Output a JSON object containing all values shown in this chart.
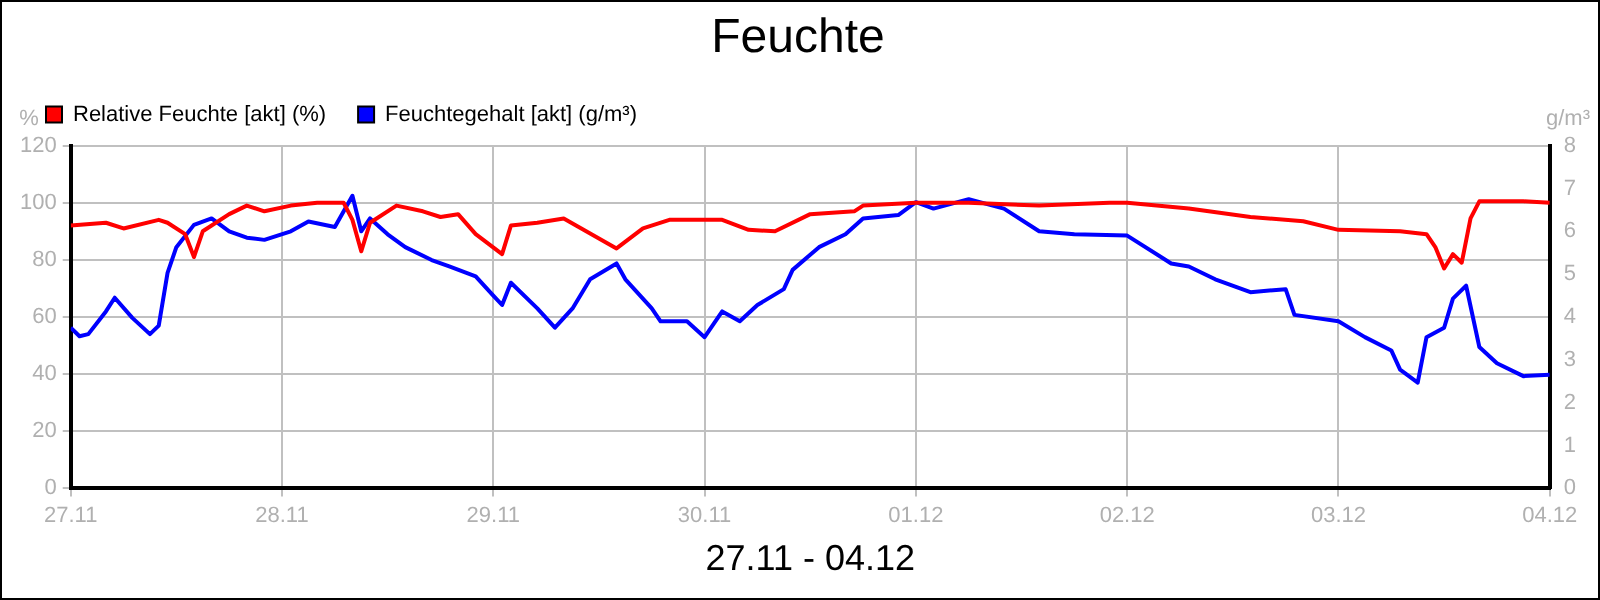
{
  "chart_data": {
    "type": "line",
    "title": "Feuchte",
    "xlabel": "27.11 - 04.12",
    "ylabel": "%",
    "y2label": "g/m³",
    "xlim": [
      "--11-27",
      "--12-04"
    ],
    "xticks": [
      {
        "value": "--11-27",
        "label": "27.11"
      },
      {
        "value": "--11-28",
        "label": "28.11"
      },
      {
        "value": "--11-29",
        "label": "29.11"
      },
      {
        "value": "--11-30",
        "label": "30.11"
      },
      {
        "value": "--12-01",
        "label": "01.12"
      },
      {
        "value": "--12-02",
        "label": "02.12"
      },
      {
        "value": "--12-03",
        "label": "03.12"
      },
      {
        "value": "--12-04",
        "label": "04.12"
      }
    ],
    "ylim": [
      0,
      120
    ],
    "yticks": [
      0,
      20,
      40,
      60,
      80,
      100,
      120
    ],
    "y2lim": [
      0,
      8
    ],
    "y2ticks": [
      0,
      1,
      2,
      3,
      4,
      5,
      6,
      7,
      8
    ],
    "grid": true,
    "legend": "top left",
    "marker": "none",
    "line_style": "solid",
    "series": [
      {
        "name": "Relative Feuchte [akt] (%)",
        "color": "#ff0000",
        "x": [
          "--11-27T00:00",
          "--11-27T04:00",
          "--11-27T06:00",
          "--11-27T10:00",
          "--11-27T11:00",
          "--11-27T13:00",
          "--11-27T14:00",
          "--11-27T15:00",
          "--11-27T18:00",
          "--11-27T20:00",
          "--11-27T22:00",
          "--11-28T01:00",
          "--11-28T04:00",
          "--11-28T07:00",
          "--11-28T08:00",
          "--11-28T09:00",
          "--11-28T10:00",
          "--11-28T13:00",
          "--11-28T16:00",
          "--11-28T18:00",
          "--11-28T20:00",
          "--11-28T22:00",
          "--11-29T01:00",
          "--11-29T02:00",
          "--11-29T05:00",
          "--11-29T08:00",
          "--11-29T10:00",
          "--11-29T14:00",
          "--11-29T17:00",
          "--11-29T20:00",
          "--11-30T02:00",
          "--11-30T05:00",
          "--11-30T08:00",
          "--11-30T12:00",
          "--11-30T17:00",
          "--11-30T18:00",
          "--12-01T00:00",
          "--12-01T06:00",
          "--12-01T14:00",
          "--12-01T22:00",
          "--12-02T00:00",
          "--12-02T07:00",
          "--12-02T14:00",
          "--12-02T20:00",
          "--12-03T00:00",
          "--12-03T07:00",
          "--12-03T10:00",
          "--12-03T11:00",
          "--12-03T12:00",
          "--12-03T13:00",
          "--12-03T14:00",
          "--12-03T15:00",
          "--12-03T16:00",
          "--12-03T21:00",
          "--12-04T00:00"
        ],
        "values": [
          92,
          93,
          91,
          94,
          93,
          89,
          81,
          90,
          96,
          99,
          97,
          99,
          100,
          100,
          94,
          83,
          93,
          99,
          97,
          95,
          96,
          89,
          82,
          92,
          93,
          94.5,
          91,
          84,
          91,
          94,
          94,
          90.5,
          90,
          96,
          97,
          99,
          100,
          100,
          99,
          100,
          100,
          98,
          95,
          93.5,
          90.5,
          90,
          89,
          84.5,
          77,
          82,
          79,
          94.5,
          100.5,
          100.5,
          100
        ]
      },
      {
        "name": "Feuchtegehalt [akt] (g/m³)",
        "color": "#0000ff",
        "axis": "y2",
        "x": [
          "--11-27T00:00",
          "--11-27T01:00",
          "--11-27T02:00",
          "--11-27T04:00",
          "--11-27T05:00",
          "--11-27T07:00",
          "--11-27T09:00",
          "--11-27T10:00",
          "--11-27T11:00",
          "--11-27T12:00",
          "--11-27T14:00",
          "--11-27T16:00",
          "--11-27T18:00",
          "--11-27T20:00",
          "--11-27T22:00",
          "--11-28T01:00",
          "--11-28T03:00",
          "--11-28T06:00",
          "--11-28T08:00",
          "--11-28T09:00",
          "--11-28T10:00",
          "--11-28T12:00",
          "--11-28T14:00",
          "--11-28T17:00",
          "--11-28T19:00",
          "--11-28T22:00",
          "--11-29T00:00",
          "--11-29T01:00",
          "--11-29T02:00",
          "--11-29T05:00",
          "--11-29T07:00",
          "--11-29T09:00",
          "--11-29T11:00",
          "--11-29T14:00",
          "--11-29T15:00",
          "--11-29T18:00",
          "--11-29T19:00",
          "--11-29T22:00",
          "--11-30T00:00",
          "--11-30T02:00",
          "--11-30T04:00",
          "--11-30T06:00",
          "--11-30T09:00",
          "--11-30T10:00",
          "--11-30T13:00",
          "--11-30T16:00",
          "--11-30T18:00",
          "--11-30T22:00",
          "--12-01T00:00",
          "--12-01T02:00",
          "--12-01T06:00",
          "--12-01T10:00",
          "--12-01T14:00",
          "--12-01T18:00",
          "--12-02T00:00",
          "--12-02T05:00",
          "--12-02T07:00",
          "--12-02T10:00",
          "--12-02T14:00",
          "--12-02T18:00",
          "--12-02T19:00",
          "--12-03T00:00",
          "--12-03T03:00",
          "--12-03T06:00",
          "--12-03T07:00",
          "--12-03T09:00",
          "--12-03T10:00",
          "--12-03T12:00",
          "--12-03T13:00",
          "--12-03T13:45",
          "--12-03T14:30",
          "--12-03T16:00",
          "--12-03T18:00",
          "--12-03T21:00",
          "--12-04T00:00"
        ],
        "values": [
          3.75,
          3.55,
          3.6,
          4.13,
          4.45,
          3.98,
          3.6,
          3.8,
          5.03,
          5.63,
          6.15,
          6.3,
          6.0,
          5.85,
          5.8,
          6.0,
          6.23,
          6.1,
          6.83,
          6.0,
          6.3,
          5.93,
          5.63,
          5.33,
          5.18,
          4.95,
          4.5,
          4.28,
          4.8,
          4.2,
          3.75,
          4.2,
          4.88,
          5.25,
          4.88,
          4.2,
          3.9,
          3.9,
          3.53,
          4.13,
          3.9,
          4.28,
          4.65,
          5.1,
          5.63,
          5.93,
          6.3,
          6.38,
          6.68,
          6.53,
          6.75,
          6.53,
          6.0,
          5.93,
          5.9,
          5.25,
          5.18,
          4.88,
          4.58,
          4.65,
          4.05,
          3.9,
          3.53,
          3.22,
          2.77,
          2.47,
          3.53,
          3.75,
          4.43,
          4.58,
          4.73,
          3.3,
          2.92,
          2.62,
          2.65
        ]
      }
    ]
  }
}
